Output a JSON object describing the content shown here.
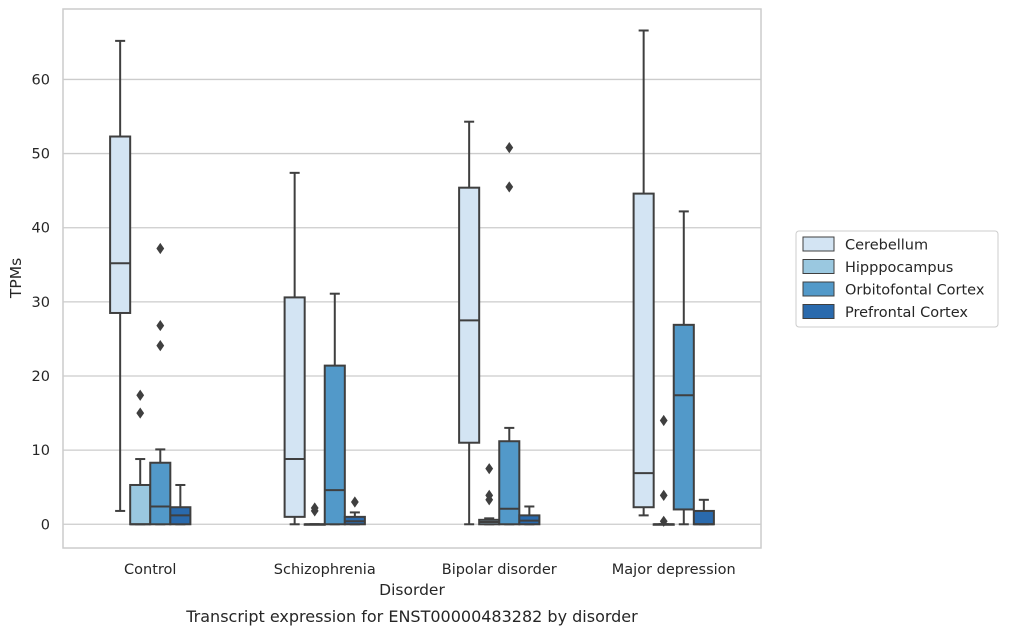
{
  "caption": "Transcript expression for ENST00000483282 by disorder",
  "chart_data": {
    "type": "box",
    "xlabel": "Disorder",
    "ylabel": "TPMs",
    "categories": [
      "Control",
      "Schizophrenia",
      "Bipolar disorder",
      "Major depression"
    ],
    "ylim": [
      -3.2,
      69.5
    ],
    "yticks": [
      0,
      10,
      20,
      30,
      40,
      50,
      60
    ],
    "grid": true,
    "legend_position": "right-center",
    "series": [
      {
        "name": "Cerebellum",
        "color": "#d3e4f3",
        "boxes": [
          {
            "min": 1.8,
            "q1": 28.5,
            "median": 35.2,
            "q3": 52.3,
            "max": 65.2,
            "outliers": []
          },
          {
            "min": 0.0,
            "q1": 1.0,
            "median": 8.8,
            "q3": 30.6,
            "max": 47.4,
            "outliers": []
          },
          {
            "min": 0.0,
            "q1": 11.0,
            "median": 27.5,
            "q3": 45.4,
            "max": 54.3,
            "outliers": []
          },
          {
            "min": 1.2,
            "q1": 2.3,
            "median": 6.9,
            "q3": 44.6,
            "max": 66.6,
            "outliers": []
          }
        ]
      },
      {
        "name": "Hipppocampus",
        "color": "#9ac8e0",
        "boxes": [
          {
            "min": 0.0,
            "q1": 0.0,
            "median": 0.0,
            "q3": 5.3,
            "max": 8.8,
            "outliers": [
              15.0,
              17.4
            ]
          },
          {
            "min": 0.0,
            "q1": 0.0,
            "median": 0.0,
            "q3": 0.0,
            "max": 0.0,
            "outliers": [
              1.8,
              2.2
            ]
          },
          {
            "min": 0.0,
            "q1": 0.0,
            "median": 0.3,
            "q3": 0.6,
            "max": 0.8,
            "outliers": [
              3.3,
              3.9,
              7.5
            ]
          },
          {
            "min": 0.0,
            "q1": 0.0,
            "median": 0.0,
            "q3": 0.0,
            "max": 0.0,
            "outliers": [
              0.4,
              3.9,
              14.0
            ]
          }
        ]
      },
      {
        "name": "Orbitofontal Cortex",
        "color": "#5299c9",
        "boxes": [
          {
            "min": 0.0,
            "q1": 0.0,
            "median": 2.4,
            "q3": 8.3,
            "max": 10.1,
            "outliers": [
              24.1,
              26.8,
              37.2
            ]
          },
          {
            "min": 0.0,
            "q1": 0.0,
            "median": 4.6,
            "q3": 21.4,
            "max": 31.1,
            "outliers": []
          },
          {
            "min": 0.0,
            "q1": 0.0,
            "median": 2.1,
            "q3": 11.2,
            "max": 13.0,
            "outliers": [
              45.5,
              50.8
            ]
          },
          {
            "min": 0.0,
            "q1": 2.0,
            "median": 17.4,
            "q3": 26.9,
            "max": 42.2,
            "outliers": []
          }
        ]
      },
      {
        "name": "Prefrontal Cortex",
        "color": "#2a6aad",
        "boxes": [
          {
            "min": 0.0,
            "q1": 0.0,
            "median": 1.2,
            "q3": 2.3,
            "max": 5.3,
            "outliers": []
          },
          {
            "min": 0.0,
            "q1": 0.0,
            "median": 0.4,
            "q3": 1.0,
            "max": 1.6,
            "outliers": [
              3.0
            ]
          },
          {
            "min": 0.0,
            "q1": 0.0,
            "median": 0.5,
            "q3": 1.2,
            "max": 2.4,
            "outliers": []
          },
          {
            "min": 0.0,
            "q1": 0.0,
            "median": 0.0,
            "q3": 1.8,
            "max": 3.3,
            "outliers": []
          }
        ]
      }
    ]
  }
}
